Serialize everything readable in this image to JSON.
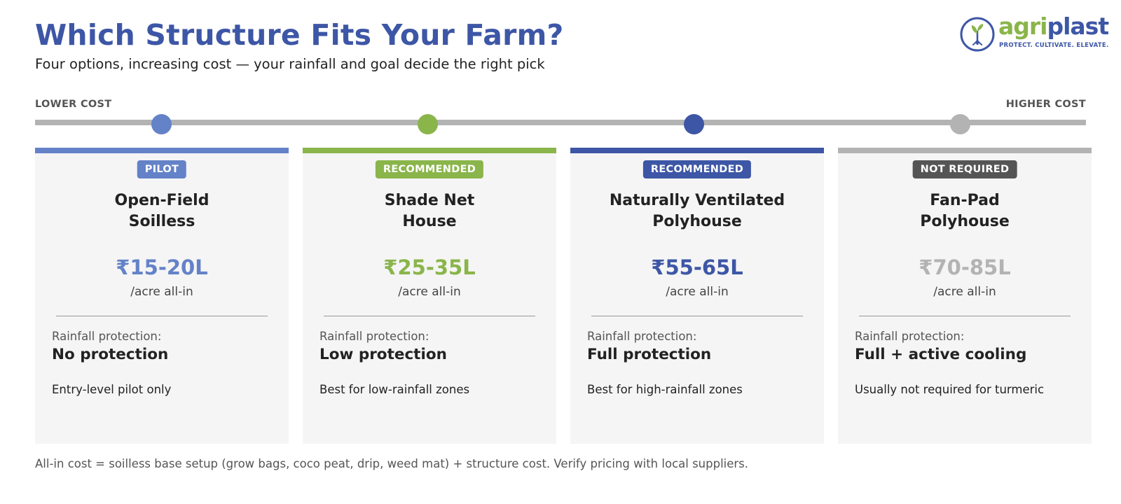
{
  "header": {
    "title": "Which Structure Fits Your Farm?",
    "subtitle": "Four options, increasing cost — your rainfall and goal decide the right pick"
  },
  "logo": {
    "word_part1": "agri",
    "word_part2": "plast",
    "trademark": "™",
    "tagline": "PROTECT. CULTIVATE. ELEVATE.",
    "icon": "sprout-icon"
  },
  "cost_scale": {
    "low_label": "LOWER COST",
    "high_label": "HIGHER COST"
  },
  "colors": {
    "title": "#3d56a6",
    "pilot": "#6482c8",
    "recommended_green": "#8ab54a",
    "recommended_blue": "#3d56a6",
    "not_required_bar": "#b3b3b3",
    "not_required_badge": "#555555"
  },
  "options": [
    {
      "badge": "PILOT",
      "name_line1": "Open-Field",
      "name_line2": "Soilless",
      "price": "₹15-20L",
      "unit": "/acre all-in",
      "rainfall_label": "Rainfall protection:",
      "rainfall_value": "No protection",
      "note": "Entry-level pilot only"
    },
    {
      "badge": "RECOMMENDED",
      "name_line1": "Shade Net",
      "name_line2": "House",
      "price": "₹25-35L",
      "unit": "/acre all-in",
      "rainfall_label": "Rainfall protection:",
      "rainfall_value": "Low protection",
      "note": "Best for low-rainfall zones"
    },
    {
      "badge": "RECOMMENDED",
      "name_line1": "Naturally Ventilated",
      "name_line2": "Polyhouse",
      "price": "₹55-65L",
      "unit": "/acre all-in",
      "rainfall_label": "Rainfall protection:",
      "rainfall_value": "Full protection",
      "note": "Best for high-rainfall zones"
    },
    {
      "badge": "NOT REQUIRED",
      "name_line1": "Fan-Pad",
      "name_line2": "Polyhouse",
      "price": "₹70-85L",
      "unit": "/acre all-in",
      "rainfall_label": "Rainfall protection:",
      "rainfall_value": "Full + active cooling",
      "note": "Usually not required for turmeric"
    }
  ],
  "footnote": "All-in cost = soilless base setup (grow bags, coco peat, drip, weed mat) + structure cost. Verify pricing with local suppliers."
}
